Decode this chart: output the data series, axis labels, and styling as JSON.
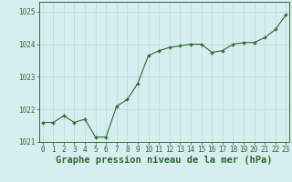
{
  "x": [
    0,
    1,
    2,
    3,
    4,
    5,
    6,
    7,
    8,
    9,
    10,
    11,
    12,
    13,
    14,
    15,
    16,
    17,
    18,
    19,
    20,
    21,
    22,
    23
  ],
  "y": [
    1021.6,
    1021.6,
    1021.8,
    1021.6,
    1021.7,
    1021.15,
    1021.15,
    1022.1,
    1022.3,
    1022.8,
    1023.65,
    1023.8,
    1023.9,
    1023.95,
    1024.0,
    1024.0,
    1023.75,
    1023.8,
    1024.0,
    1024.05,
    1024.05,
    1024.2,
    1024.45,
    1024.9
  ],
  "line_color": "#2d6a2d",
  "marker": "+",
  "background_color": "#d6eef0",
  "grid_color": "#b8d8d8",
  "xlabel": "Graphe pression niveau de la mer (hPa)",
  "xlabel_color": "#2d6a2d",
  "tick_color": "#2d6a2d",
  "ylim": [
    1021.0,
    1025.3
  ],
  "yticks": [
    1021,
    1022,
    1023,
    1024,
    1025
  ],
  "xticks": [
    0,
    1,
    2,
    3,
    4,
    5,
    6,
    7,
    8,
    9,
    10,
    11,
    12,
    13,
    14,
    15,
    16,
    17,
    18,
    19,
    20,
    21,
    22,
    23
  ],
  "tick_fontsize": 5.5,
  "xlabel_fontsize": 7.5,
  "line_width": 0.8,
  "marker_size": 3.5
}
